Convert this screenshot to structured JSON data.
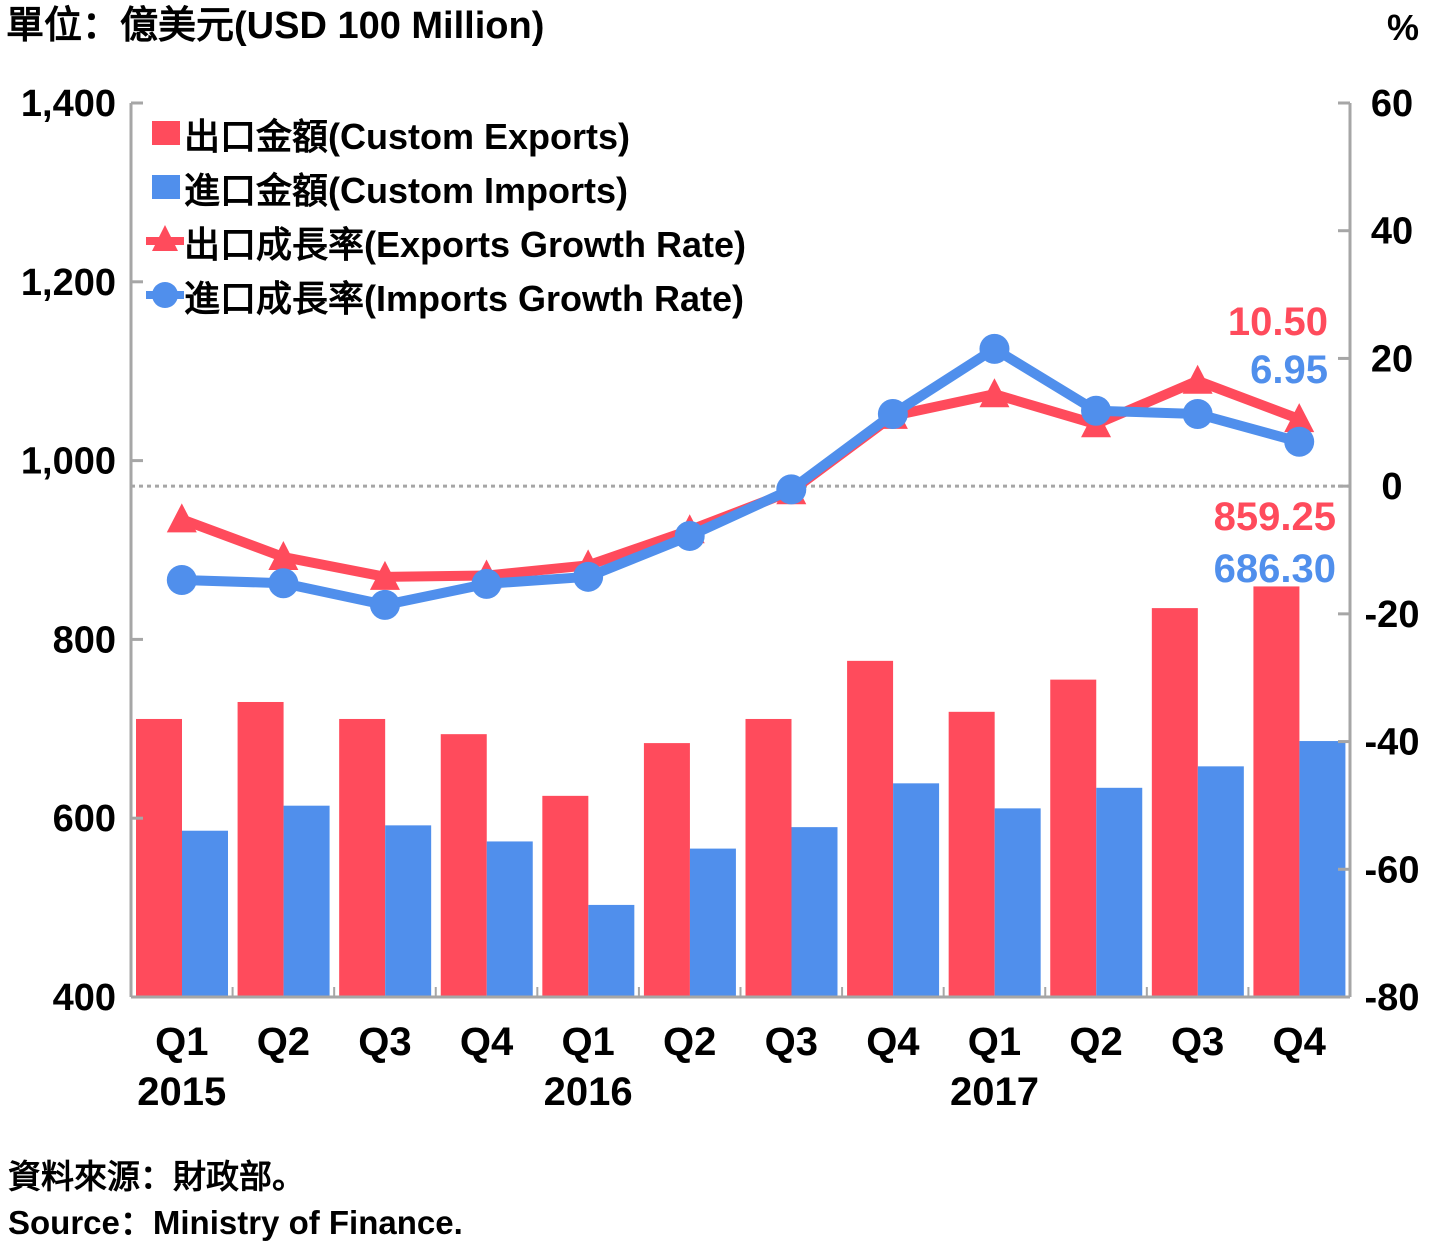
{
  "chart_data": {
    "type": "bar",
    "unit_label": "單位：億美元(USD 100 Million)",
    "right_unit_label": "%",
    "categories": [
      "Q1",
      "Q2",
      "Q3",
      "Q4",
      "Q1",
      "Q2",
      "Q3",
      "Q4",
      "Q1",
      "Q2",
      "Q3",
      "Q4"
    ],
    "year_labels": [
      {
        "label": "2015",
        "category_index": 0
      },
      {
        "label": "2016",
        "category_index": 4
      },
      {
        "label": "2017",
        "category_index": 8
      }
    ],
    "left_axis": {
      "ylim": [
        400,
        1400
      ],
      "ticks": [
        400,
        600,
        800,
        1000,
        1200,
        1400
      ],
      "tick_labels": [
        "400",
        "600",
        "800",
        "1,000",
        "1,200",
        "1,400"
      ]
    },
    "right_axis": {
      "ylim": [
        -80,
        60
      ],
      "ticks": [
        -80,
        -60,
        -40,
        -20,
        0,
        20,
        40,
        60
      ],
      "tick_labels": [
        "-80",
        "-60",
        "-40",
        "-20",
        "0",
        "20",
        "40",
        "60"
      ]
    },
    "zero_reference_line": {
      "axis": "right",
      "value": 0,
      "style": "dotted"
    },
    "grid": false,
    "legend_position": "top-left",
    "series": [
      {
        "name": "出口金額(Custom Exports)",
        "type": "bar",
        "axis": "left",
        "color": "#FF4B5C",
        "values": [
          711,
          730,
          711,
          694,
          625,
          684,
          711,
          776,
          719,
          755,
          835,
          859.25
        ]
      },
      {
        "name": "進口金額(Custom Imports)",
        "type": "bar",
        "axis": "left",
        "color": "#508FEC",
        "values": [
          586,
          614,
          592,
          574,
          503,
          566,
          590,
          639,
          611,
          634,
          658,
          686.3
        ]
      },
      {
        "name": "出口成長率(Exports Growth Rate)",
        "type": "line",
        "marker": "triangle",
        "axis": "right",
        "color": "#FF4B5C",
        "values": [
          -5.2,
          -11.1,
          -14.2,
          -14.0,
          -12.4,
          -6.9,
          -0.8,
          11.0,
          14.4,
          9.7,
          16.5,
          10.5
        ]
      },
      {
        "name": "進口成長率(Imports Growth Rate)",
        "type": "line",
        "marker": "circle",
        "axis": "right",
        "color": "#508FEC",
        "values": [
          -14.7,
          -15.2,
          -18.6,
          -15.3,
          -14.2,
          -7.8,
          -0.5,
          11.3,
          21.5,
          11.8,
          11.3,
          6.95
        ]
      }
    ],
    "annotations": [
      {
        "text": "10.50",
        "series_index": 2,
        "category_index": 11,
        "color": "#FF4B5C"
      },
      {
        "text": "6.95",
        "series_index": 3,
        "category_index": 11,
        "color": "#508FEC"
      },
      {
        "text": "859.25",
        "series_index": 0,
        "category_index": 11,
        "color": "#FF4B5C"
      },
      {
        "text": "686.30",
        "series_index": 1,
        "category_index": 11,
        "color": "#508FEC"
      }
    ]
  },
  "footer": {
    "source_zh": "資料來源：財政部。",
    "source_en": "Source：Ministry of Finance."
  }
}
